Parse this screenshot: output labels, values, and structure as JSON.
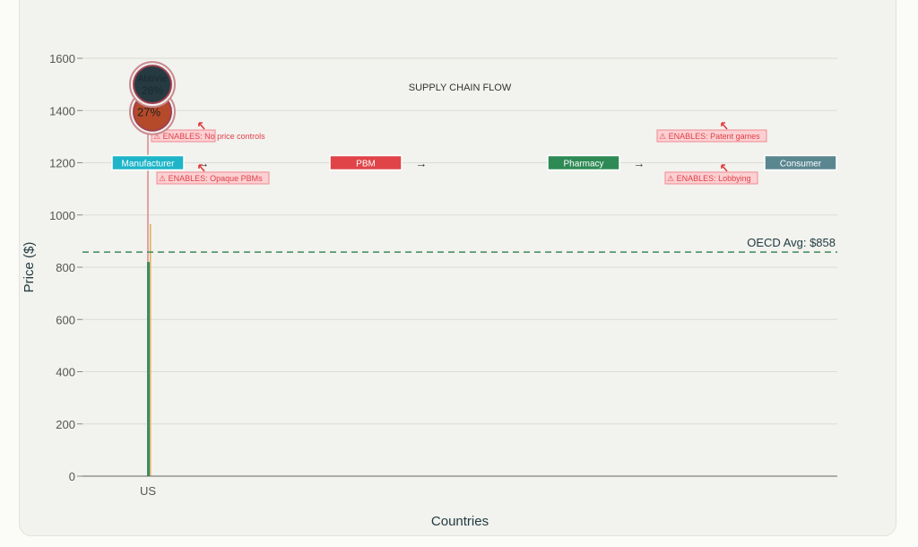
{
  "chart_data": {
    "type": "bar",
    "categories": [
      "US"
    ],
    "series": [
      {
        "values": [
          820
        ],
        "color": "#3d8a68"
      },
      {
        "values": [
          965
        ],
        "color": "#e0b050"
      }
    ],
    "xlabel": "Countries",
    "ylabel": "Price ($)",
    "ylim": [
      0,
      1650
    ],
    "yticks": [
      0,
      200,
      400,
      600,
      800,
      1000,
      1200,
      1400,
      1600
    ],
    "grid": true,
    "reference_line": {
      "label": "OECD Avg: $858",
      "value": 858,
      "color": "#3d8a5a"
    },
    "bubbles": [
      {
        "label": "AbbVie",
        "value_label": "28%",
        "y": 1500,
        "color": "#263a42"
      },
      {
        "label": "",
        "value_label": "27%",
        "y": 1395,
        "color": "#b54a2a"
      }
    ],
    "supply_chain": {
      "title": "SUPPLY CHAIN FLOW",
      "y": 1200,
      "nodes": [
        {
          "label": "Manufacturer",
          "color": "#1fb5c9"
        },
        {
          "label": "PBM",
          "color": "#e04448"
        },
        {
          "label": "Pharmacy",
          "color": "#2e8a55"
        },
        {
          "label": "Consumer",
          "color": "#5a8690"
        }
      ],
      "arrow": "→",
      "warnings": [
        "⚠ ENABLES: No price controls",
        "⚠ ENABLES: Opaque PBMs",
        "⚠ ENABLES: Patent games",
        "⚠ ENABLES: Lobbying"
      ]
    }
  }
}
